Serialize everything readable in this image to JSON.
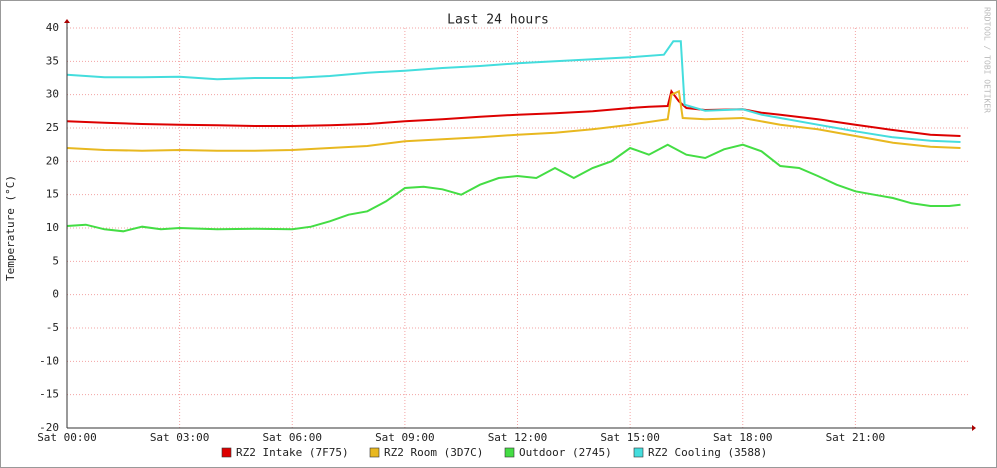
{
  "chart_data": {
    "type": "line",
    "title": "Last 24 hours",
    "y_label": "Temperature (°C)",
    "watermark": "RRDTOOL / TOBI OETIKER",
    "xlim": [
      0,
      24
    ],
    "ylim": [
      -20,
      40
    ],
    "xticks": [
      {
        "value": 0,
        "label": "Sat 00:00"
      },
      {
        "value": 3,
        "label": "Sat 03:00"
      },
      {
        "value": 6,
        "label": "Sat 06:00"
      },
      {
        "value": 9,
        "label": "Sat 09:00"
      },
      {
        "value": 12,
        "label": "Sat 12:00"
      },
      {
        "value": 15,
        "label": "Sat 15:00"
      },
      {
        "value": 18,
        "label": "Sat 18:00"
      },
      {
        "value": 21,
        "label": "Sat 21:00"
      }
    ],
    "yticks": [
      -20,
      -15,
      -10,
      -5,
      0,
      5,
      10,
      15,
      20,
      25,
      30,
      35,
      40
    ],
    "grid": true,
    "series": [
      {
        "name": "RZ2 Intake (7F75)",
        "color": "#dd0000",
        "x": [
          0,
          1,
          2,
          3,
          4,
          5,
          6,
          7,
          8,
          9,
          10,
          11,
          12,
          13,
          14,
          15,
          15.5,
          16.0,
          16.1,
          16.3,
          16.5,
          17,
          18,
          18.5,
          19,
          20,
          21,
          22,
          23,
          23.8
        ],
        "values": [
          26,
          25.8,
          25.6,
          25.5,
          25.4,
          25.3,
          25.3,
          25.4,
          25.6,
          26,
          26.3,
          26.7,
          27,
          27.2,
          27.5,
          28,
          28.2,
          28.3,
          30.5,
          29,
          28,
          27.7,
          27.8,
          27.3,
          27,
          26.3,
          25.5,
          24.7,
          24,
          23.8
        ]
      },
      {
        "name": "RZ2 Room (3D7C)",
        "color": "#e8b820",
        "x": [
          0,
          1,
          2,
          3,
          4,
          5,
          6,
          7,
          8,
          9,
          10,
          11,
          12,
          13,
          14,
          15,
          16,
          16.1,
          16.3,
          16.4,
          17,
          18,
          19,
          20,
          21,
          22,
          23,
          23.8
        ],
        "values": [
          22,
          21.7,
          21.6,
          21.7,
          21.6,
          21.6,
          21.7,
          22,
          22.3,
          23,
          23.3,
          23.6,
          24,
          24.3,
          24.8,
          25.5,
          26.3,
          30,
          30.5,
          26.5,
          26.3,
          26.5,
          25.5,
          24.8,
          23.8,
          22.8,
          22.2,
          22
        ]
      },
      {
        "name": "Outdoor (2745)",
        "color": "#44dd44",
        "x": [
          0,
          0.5,
          1,
          1.5,
          2,
          2.5,
          3,
          4,
          5,
          6,
          6.5,
          7,
          7.5,
          8,
          8.5,
          9,
          9.5,
          10,
          10.5,
          11,
          11.5,
          12,
          12.5,
          13,
          13.5,
          14,
          14.5,
          15,
          15.5,
          16,
          16.5,
          17,
          17.5,
          18,
          18.5,
          19,
          19.5,
          20,
          20.5,
          21,
          21.5,
          22,
          22.5,
          23,
          23.5,
          23.8
        ],
        "values": [
          10.3,
          10.5,
          9.8,
          9.5,
          10.2,
          9.8,
          10,
          9.8,
          9.9,
          9.8,
          10.2,
          11,
          12,
          12.5,
          14,
          16,
          16.2,
          15.8,
          15,
          16.5,
          17.5,
          17.8,
          17.5,
          19,
          17.5,
          19,
          20,
          22,
          21,
          22.5,
          21,
          20.5,
          21.8,
          22.5,
          21.5,
          19.3,
          19,
          17.8,
          16.5,
          15.5,
          15,
          14.5,
          13.7,
          13.3,
          13.3,
          13.5
        ]
      },
      {
        "name": "RZ2 Cooling (3588)",
        "color": "#44dddd",
        "x": [
          0,
          1,
          2,
          3,
          4,
          5,
          6,
          7,
          8,
          9,
          10,
          11,
          12,
          13,
          14,
          15,
          15.9,
          16.15,
          16.35,
          16.45,
          17,
          18,
          18.5,
          19,
          20,
          21,
          22,
          23,
          23.8
        ],
        "values": [
          33,
          32.6,
          32.6,
          32.7,
          32.3,
          32.5,
          32.5,
          32.8,
          33.3,
          33.6,
          34,
          34.3,
          34.7,
          35,
          35.3,
          35.6,
          36,
          38,
          38,
          28.5,
          27.6,
          27.8,
          27,
          26.5,
          25.5,
          24.5,
          23.6,
          23.1,
          22.9
        ]
      }
    ]
  }
}
